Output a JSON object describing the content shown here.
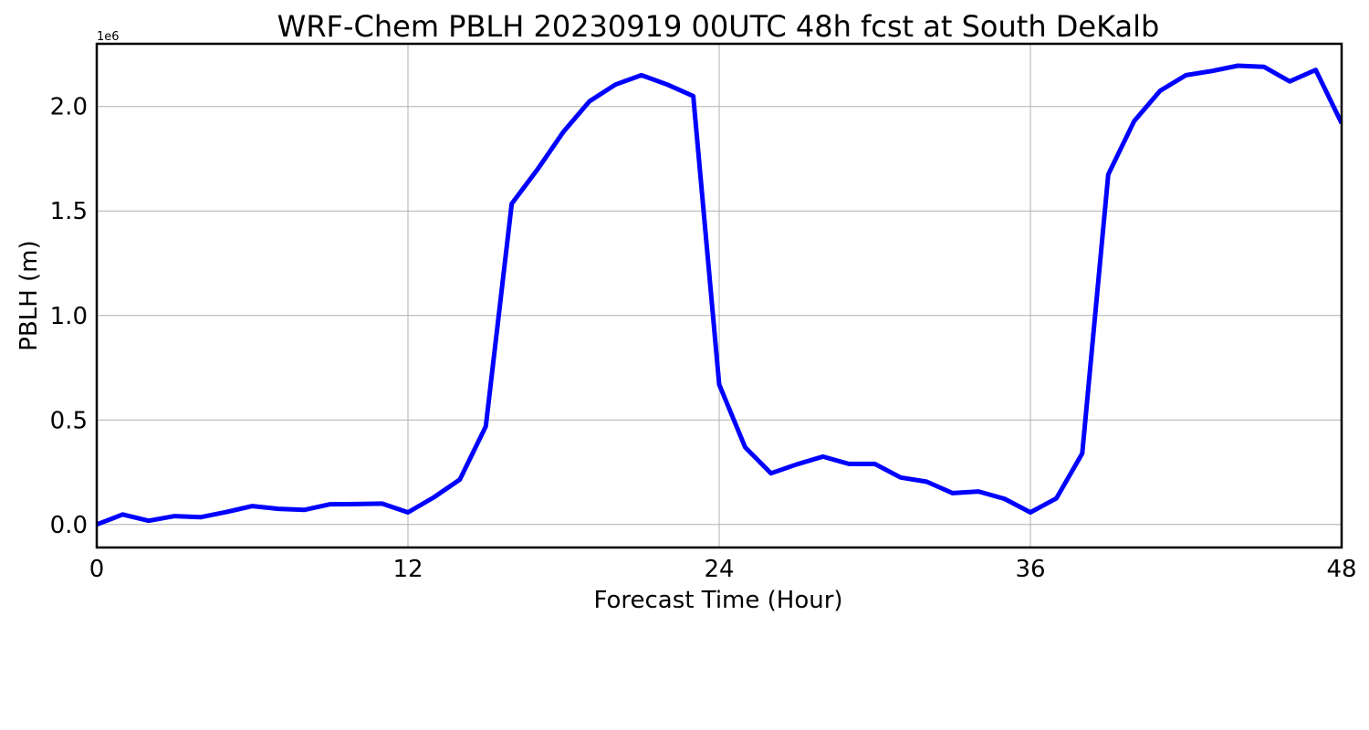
{
  "chart_data": {
    "type": "line",
    "title": "WRF-Chem PBLH  20230919 00UTC 48h fcst at South DeKalb",
    "xlabel": "Forecast Time (Hour)",
    "ylabel": "PBLH  (m)",
    "y_offset_label": "1e6",
    "xlim": [
      0,
      48
    ],
    "ylim": [
      -0.11,
      2.3
    ],
    "xticks": [
      0,
      12,
      24,
      36,
      48
    ],
    "xtick_labels": [
      "0",
      "12",
      "24",
      "36",
      "48"
    ],
    "yticks": [
      0.0,
      0.5,
      1.0,
      1.5,
      2.0
    ],
    "ytick_labels": [
      "0.0",
      "0.5",
      "1.0",
      "1.5",
      "2.0"
    ],
    "grid": true,
    "series": [
      {
        "color": "#0000ff",
        "x": [
          0,
          1,
          2,
          3,
          4,
          5,
          6,
          7,
          8,
          9,
          10,
          11,
          12,
          13,
          14,
          15,
          16,
          17,
          18,
          19,
          20,
          21,
          22,
          23,
          24,
          25,
          26,
          27,
          28,
          29,
          30,
          31,
          32,
          33,
          34,
          35,
          36,
          37,
          38,
          39,
          40,
          41,
          42,
          43,
          44,
          45,
          46,
          47,
          48
        ],
        "values": [
          0.0,
          0.048,
          0.018,
          0.04,
          0.035,
          0.06,
          0.088,
          0.075,
          0.07,
          0.097,
          0.098,
          0.1,
          0.058,
          0.13,
          0.215,
          0.47,
          1.535,
          1.7,
          1.88,
          2.025,
          2.105,
          2.15,
          2.105,
          2.05,
          0.67,
          0.37,
          0.245,
          0.288,
          0.325,
          0.29,
          0.29,
          0.225,
          0.205,
          0.15,
          0.158,
          0.123,
          0.058,
          0.125,
          0.34,
          1.675,
          1.93,
          2.075,
          2.15,
          2.17,
          2.195,
          2.19,
          2.12,
          2.175,
          1.92
        ]
      }
    ]
  }
}
